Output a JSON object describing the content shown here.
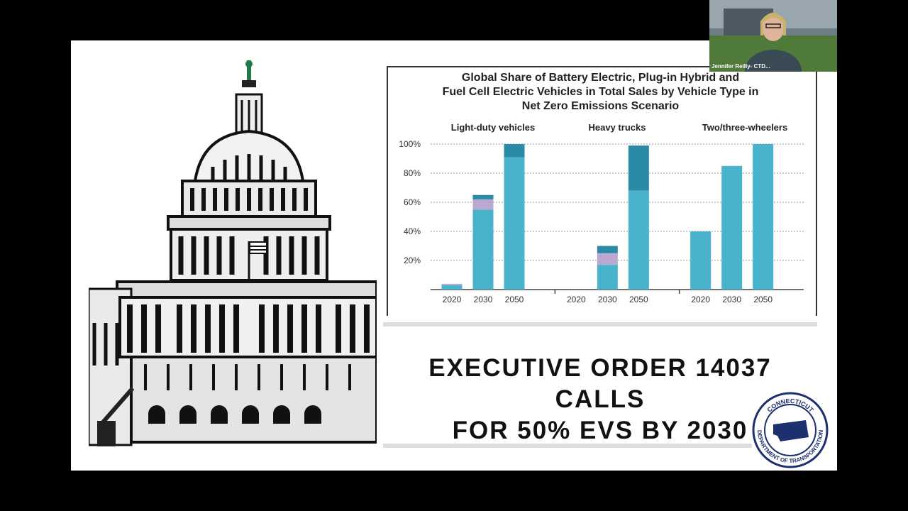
{
  "webcam": {
    "participant_name": "Jennifer Reilly- CTD..."
  },
  "chart_data": {
    "type": "bar",
    "title": "Global Share of Battery Electric, Plug-in Hybrid and Fuel Cell Electric Vehicles in Total Sales by Vehicle Type in Net Zero Emissions Scenario",
    "title_lines": [
      "Global Share of Battery Electric, Plug-in Hybrid and",
      "Fuel Cell Electric Vehicles in Total Sales by Vehicle Type in",
      "Net Zero Emissions Scenario"
    ],
    "ylim": [
      0,
      100
    ],
    "y_ticks": [
      "20%",
      "40%",
      "60%",
      "80%",
      "100%"
    ],
    "grid": true,
    "panels": [
      {
        "label": "Light-duty vehicles",
        "categories": [
          "2020",
          "2030",
          "2050"
        ],
        "series": [
          {
            "values": [
              3,
              55,
              91
            ]
          },
          {
            "values": [
              1,
              7,
              0
            ]
          },
          {
            "values": [
              0,
              3,
              9
            ]
          }
        ]
      },
      {
        "label": "Heavy trucks",
        "categories": [
          "2020",
          "2030",
          "2050"
        ],
        "series": [
          {
            "values": [
              0,
              17,
              68
            ]
          },
          {
            "values": [
              0,
              8,
              0
            ]
          },
          {
            "values": [
              0,
              5,
              31
            ]
          }
        ]
      },
      {
        "label": "Two/three-wheelers",
        "categories": [
          "2020",
          "2030",
          "2050"
        ],
        "series": [
          {
            "values": [
              40,
              85,
              100
            ]
          },
          {
            "values": [
              0,
              0,
              0
            ]
          },
          {
            "values": [
              0,
              0,
              0
            ]
          }
        ]
      }
    ],
    "colors": [
      "#4ab3cc",
      "#b9a8d2",
      "#2b8aa6"
    ]
  },
  "headline": {
    "line1": "EXECUTIVE ORDER 14037 CALLS",
    "line2": "FOR 50% EVS BY 2030"
  },
  "seal": {
    "top_text": "CONNECTICUT",
    "bottom_text": "DEPARTMENT OF TRANSPORTATION"
  }
}
